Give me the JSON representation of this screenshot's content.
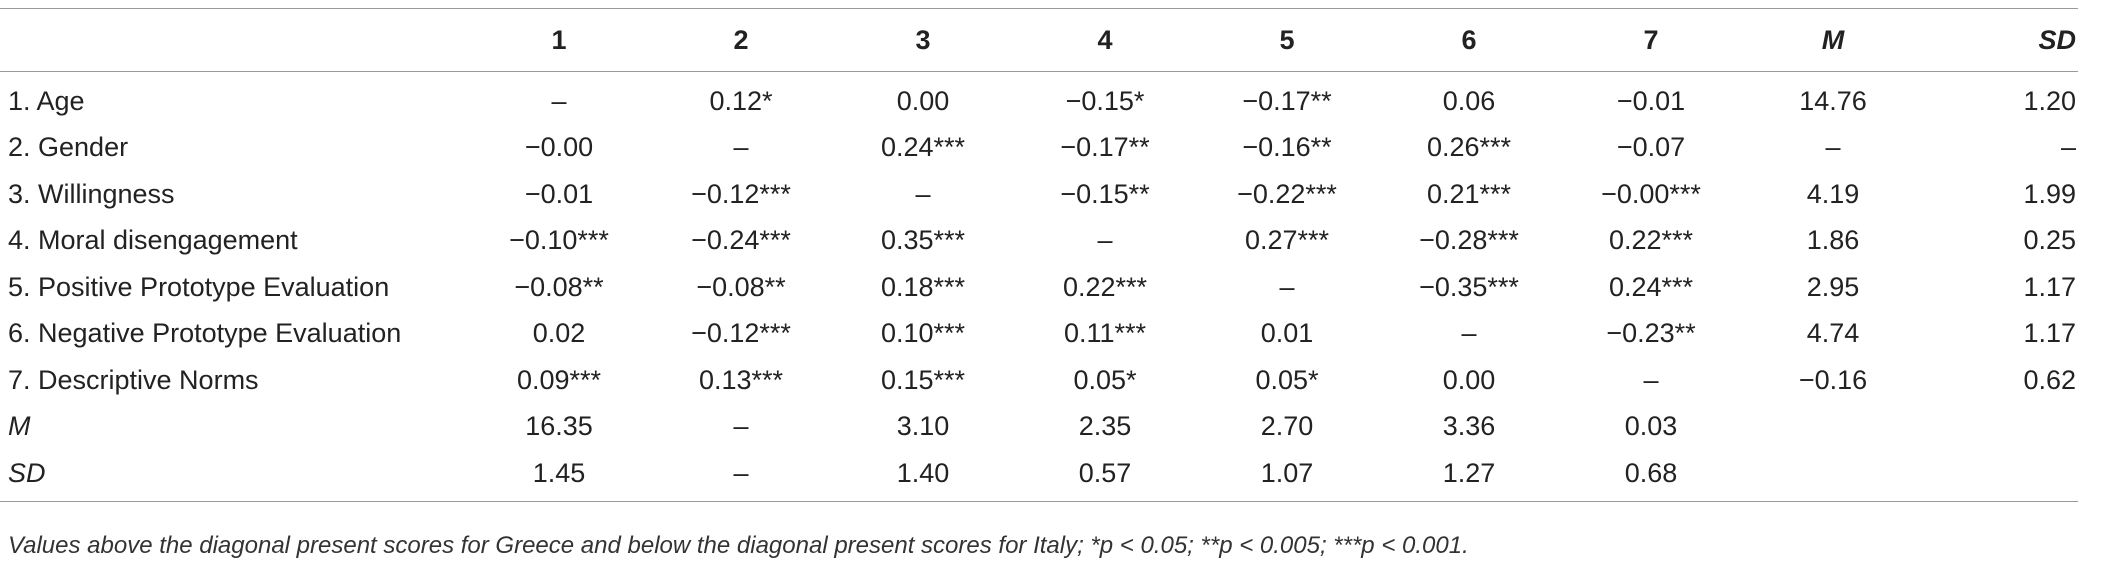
{
  "table": {
    "headers": [
      "",
      "1",
      "2",
      "3",
      "4",
      "5",
      "6",
      "7",
      "M",
      "SD"
    ],
    "rows": [
      {
        "label": "1. Age",
        "cells": [
          "–",
          "0.12*",
          "0.00",
          "−0.15*",
          "−0.17**",
          "0.06",
          "−0.01",
          "14.76",
          "1.20"
        ]
      },
      {
        "label": "2. Gender",
        "cells": [
          "−0.00",
          "–",
          "0.24***",
          "−0.17**",
          "−0.16**",
          "0.26***",
          "−0.07",
          "–",
          "–"
        ]
      },
      {
        "label": "3. Willingness",
        "cells": [
          "−0.01",
          "−0.12***",
          "–",
          "−0.15**",
          "−0.22***",
          "0.21***",
          "−0.00***",
          "4.19",
          "1.99"
        ]
      },
      {
        "label": "4. Moral disengagement",
        "cells": [
          "−0.10***",
          "−0.24***",
          "0.35***",
          "–",
          "0.27***",
          "−0.28***",
          "0.22***",
          "1.86",
          "0.25"
        ]
      },
      {
        "label": "5. Positive Prototype Evaluation",
        "cells": [
          "−0.08**",
          "−0.08**",
          "0.18***",
          "0.22***",
          "–",
          "−0.35***",
          "0.24***",
          "2.95",
          "1.17"
        ]
      },
      {
        "label": "6. Negative Prototype Evaluation",
        "cells": [
          "0.02",
          "−0.12***",
          "0.10***",
          "0.11***",
          "0.01",
          "–",
          "−0.23**",
          "4.74",
          "1.17"
        ]
      },
      {
        "label": "7. Descriptive Norms",
        "cells": [
          "0.09***",
          "0.13***",
          "0.15***",
          "0.05*",
          "0.05*",
          "0.00",
          "–",
          "−0.16",
          "0.62"
        ]
      },
      {
        "label": "M",
        "cells": [
          "16.35",
          "–",
          "3.10",
          "2.35",
          "2.70",
          "3.36",
          "0.03",
          "",
          ""
        ]
      },
      {
        "label": "SD",
        "cells": [
          "1.45",
          "–",
          "1.40",
          "0.57",
          "1.07",
          "1.27",
          "0.68",
          "",
          ""
        ]
      }
    ]
  },
  "note": "Values above the diagonal present scores for Greece and below the diagonal present scores for Italy; *p < 0.05; **p < 0.005; ***p < 0.001."
}
